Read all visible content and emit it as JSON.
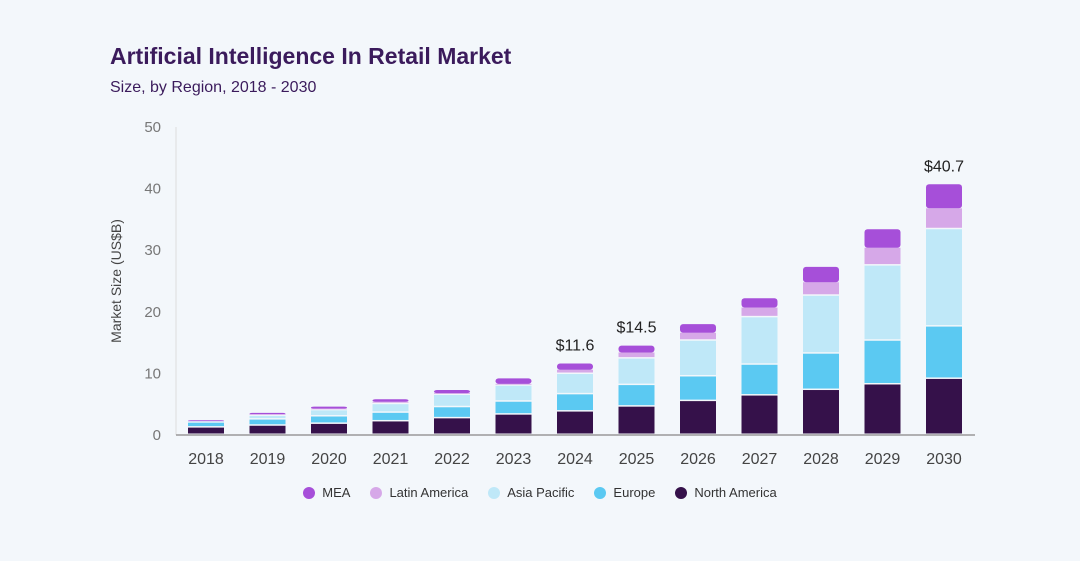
{
  "chart_data": {
    "type": "bar",
    "stacked": true,
    "title": "Artificial Intelligence In Retail Market",
    "subtitle": "Size, by Region, 2018 - 2030",
    "xlabel": "",
    "ylabel": "Market Size (US$B)",
    "ylim": [
      0,
      50
    ],
    "yticks": [
      0,
      10,
      20,
      30,
      40,
      50
    ],
    "grid": false,
    "legend_position": "bottom",
    "categories": [
      "2018",
      "2019",
      "2020",
      "2021",
      "2022",
      "2023",
      "2024",
      "2025",
      "2026",
      "2027",
      "2028",
      "2029",
      "2030"
    ],
    "series": [
      {
        "name": "North America",
        "color": "#35114a",
        "values": [
          1.2,
          1.5,
          1.8,
          2.2,
          2.7,
          3.3,
          3.8,
          4.6,
          5.5,
          6.4,
          7.3,
          8.2,
          9.1
        ]
      },
      {
        "name": "Europe",
        "color": "#5bc9f2",
        "values": [
          0.8,
          1.0,
          1.2,
          1.4,
          1.8,
          2.1,
          2.8,
          3.5,
          4.0,
          5.0,
          5.9,
          7.1,
          8.5
        ]
      },
      {
        "name": "Asia Pacific",
        "color": "#bfe8f8",
        "values": [
          0.3,
          0.6,
          1.0,
          1.4,
          2.0,
          2.6,
          3.3,
          4.3,
          5.8,
          7.7,
          9.4,
          12.2,
          15.8
        ]
      },
      {
        "name": "Latin America",
        "color": "#d6a8e8",
        "values": [
          0.05,
          0.3,
          0.3,
          0.4,
          0.3,
          0.3,
          0.7,
          1.0,
          1.3,
          1.6,
          2.2,
          2.9,
          3.4
        ]
      },
      {
        "name": "MEA",
        "color": "#a64fd9",
        "values": [
          0.05,
          0.2,
          0.3,
          0.4,
          0.5,
          0.9,
          1.0,
          1.1,
          1.4,
          1.5,
          2.5,
          3.0,
          3.9
        ]
      }
    ],
    "legend_order": [
      "MEA",
      "Latin America",
      "Asia Pacific",
      "Europe",
      "North America"
    ],
    "data_labels": [
      {
        "category": "2024",
        "text": "$11.6",
        "value": 11.6
      },
      {
        "category": "2025",
        "text": "$14.5",
        "value": 14.5
      },
      {
        "category": "2030",
        "text": "$40.7",
        "value": 40.7
      }
    ]
  }
}
